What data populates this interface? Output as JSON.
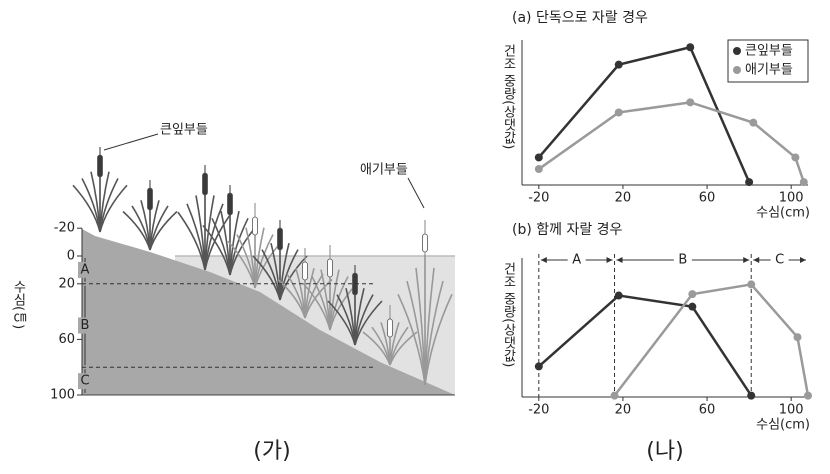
{
  "diagram": {
    "plant_labels": [
      "큰잎부들",
      "애기부들"
    ],
    "depth_axis": {
      "label": "수심(㎝)",
      "ticks": [
        -20,
        0,
        20,
        60,
        100
      ]
    },
    "zones": [
      {
        "label": "A",
        "range": [
          0,
          20
        ]
      },
      {
        "label": "B",
        "range": [
          20,
          80
        ]
      },
      {
        "label": "C",
        "range": [
          80,
          100
        ]
      }
    ],
    "caption": "(가)"
  },
  "caption": "(나)",
  "chart_data": [
    {
      "type": "line",
      "title": "(a) 단독으로 자랄 경우",
      "xlabel": "수심(cm)",
      "ylabel": "건조 중량(상댓값)",
      "xlim": [
        -28,
        108
      ],
      "xticks": [
        -20,
        20,
        60,
        100
      ],
      "ylim": [
        0,
        100
      ],
      "legend": "upper right",
      "series": [
        {
          "name": "큰잎부들",
          "color": "#333333",
          "x": [
            -20,
            18,
            52,
            80
          ],
          "values": [
            19,
            83,
            95,
            2
          ]
        },
        {
          "name": "애기부들",
          "color": "#9a9a9a",
          "x": [
            -20,
            18,
            52,
            82,
            102,
            106
          ],
          "values": [
            11,
            50,
            57,
            43,
            19,
            2
          ]
        }
      ]
    },
    {
      "type": "line",
      "title": "(b) 함께 자랄 경우",
      "xlabel": "수심(cm)",
      "ylabel": "건조 중량(상댓값)",
      "xlim": [
        -28,
        108
      ],
      "xticks": [
        -20,
        20,
        60,
        100
      ],
      "ylim": [
        0,
        100
      ],
      "zones": [
        {
          "label": "A",
          "range": [
            -20,
            16
          ]
        },
        {
          "label": "B",
          "range": [
            16,
            81
          ]
        },
        {
          "label": "C",
          "range": [
            81,
            108
          ]
        }
      ],
      "series": [
        {
          "name": "큰잎부들",
          "color": "#333333",
          "x": [
            -20,
            18,
            53,
            81
          ],
          "values": [
            22,
            73,
            65,
            1
          ]
        },
        {
          "name": "애기부들",
          "color": "#9a9a9a",
          "x": [
            16,
            53,
            81,
            103,
            108
          ],
          "values": [
            1,
            74,
            81,
            43,
            1
          ]
        }
      ]
    }
  ]
}
